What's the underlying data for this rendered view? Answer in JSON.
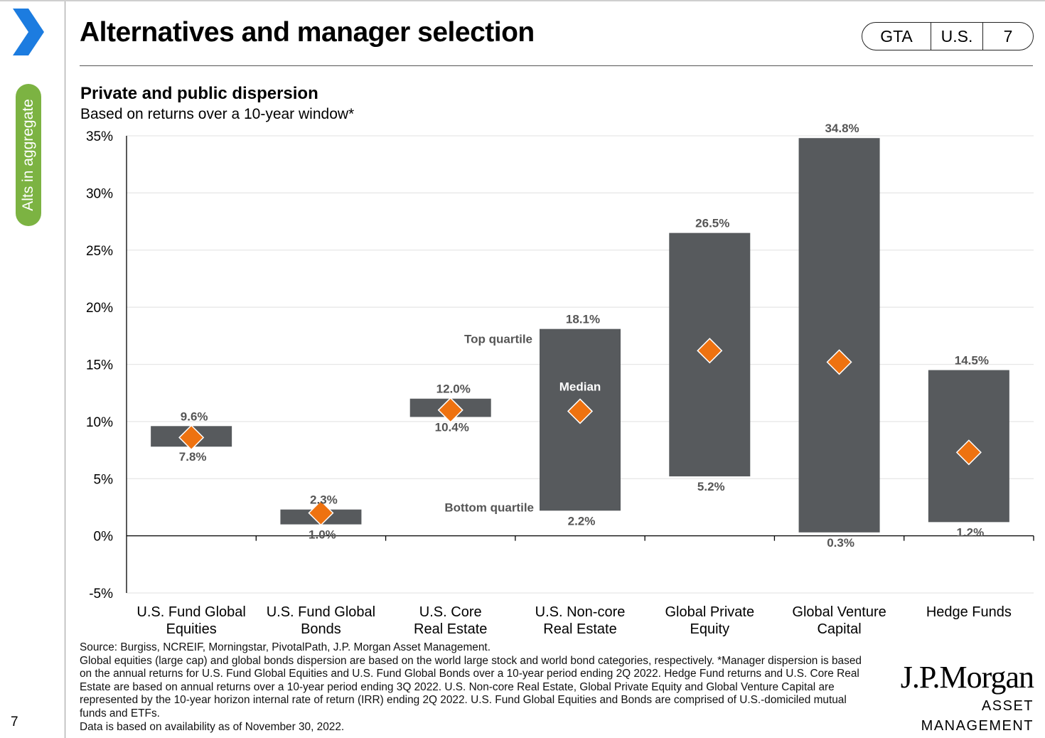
{
  "header": {
    "title": "Alternatives and manager selection",
    "tags": [
      "GTA",
      "U.S.",
      "7"
    ]
  },
  "sidebar": {
    "section_label": "Alts in aggregate",
    "page_number": "7",
    "accent_color": "#1c7ce0",
    "pill_color": "#7cb342"
  },
  "chart_data": {
    "type": "bar",
    "title": "Private and public dispersion",
    "subtitle": "Based on returns over a 10-year window*",
    "categories": [
      [
        "U.S. Fund Global",
        "Equities"
      ],
      [
        "U.S. Fund Global",
        "Bonds"
      ],
      [
        "U.S. Core",
        "Real Estate"
      ],
      [
        "U.S. Non-core",
        "Real Estate"
      ],
      [
        "Global Private",
        "Equity"
      ],
      [
        "Global Venture",
        "Capital"
      ],
      [
        "Hedge Funds"
      ]
    ],
    "top_quartile": [
      9.6,
      2.3,
      12.0,
      18.1,
      26.5,
      34.8,
      14.5
    ],
    "bottom_quartile": [
      7.8,
      1.0,
      10.4,
      2.2,
      5.2,
      0.3,
      1.2
    ],
    "median": [
      8.6,
      2.0,
      11.0,
      10.9,
      16.2,
      15.2,
      7.3
    ],
    "top_labels": [
      "9.6%",
      "2.3%",
      "12.0%",
      "18.1%",
      "26.5%",
      "34.8%",
      "14.5%"
    ],
    "bottom_labels": [
      "7.8%",
      "1.0%",
      "10.4%",
      "2.2%",
      "5.2%",
      "0.3%",
      "1.2%"
    ],
    "ylim": [
      -5,
      35
    ],
    "yticks": [
      -5,
      0,
      5,
      10,
      15,
      20,
      25,
      30,
      35
    ],
    "ytick_labels": [
      "-5%",
      "0%",
      "5%",
      "10%",
      "15%",
      "20%",
      "25%",
      "30%",
      "35%"
    ],
    "grid": true,
    "annotations": {
      "top_quartile": "Top quartile",
      "median": "Median",
      "bottom_quartile": "Bottom quartile"
    },
    "colors": {
      "bar": "#575a5d",
      "median": "#ee7210",
      "grid": "#e6e6e6",
      "axis": "#000000",
      "label": "#555555"
    }
  },
  "footnote": {
    "lines": [
      "Source: Burgiss, NCREIF, Morningstar, PivotalPath, J.P. Morgan Asset Management.",
      "Global equities (large cap) and global bonds dispersion are based on the world large stock and world bond categories, respectively. *Manager dispersion is based on the annual returns for U.S. Fund Global Equities and U.S. Fund Global Bonds over a 10-year period ending 2Q 2022. Hedge Fund returns and U.S. Core Real Estate are based on annual returns over a 10-year period ending 3Q 2022.  U.S. Non-core Real Estate, Global Private Equity and Global Venture Capital are represented by the 10-year horizon internal rate of return (IRR) ending 2Q 2022. U.S. Fund Global Equities and Bonds are comprised of U.S.-domiciled mutual funds and ETFs.",
      "Data is based on availability as of November 30, 2022."
    ]
  },
  "logo": {
    "line1": "J.P.Morgan",
    "line2": "ASSET MANAGEMENT"
  }
}
